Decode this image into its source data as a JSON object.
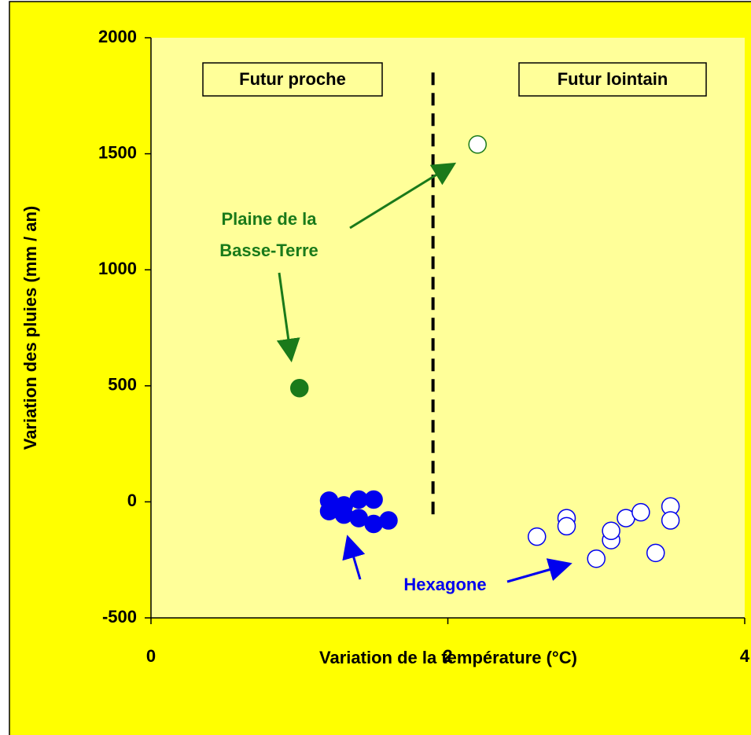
{
  "chart_data": {
    "type": "scatter",
    "xlabel": "Variation de la température (°C)",
    "ylabel": "Variation des pluies (mm / an)",
    "xlim": [
      0,
      4
    ],
    "xticks": [
      0,
      2,
      4
    ],
    "ylim": [
      -500,
      2000
    ],
    "yticks": [
      -500,
      0,
      500,
      1000,
      1500,
      2000
    ],
    "grid": false,
    "series": [
      {
        "color": "#1a7a1a",
        "filled": true,
        "x": [
          1.0
        ],
        "values": [
          490
        ]
      },
      {
        "color": "#1a7a1a",
        "filled": false,
        "x": [
          2.2
        ],
        "values": [
          1540
        ]
      },
      {
        "color": "#0000ee",
        "filled": true,
        "x": [
          1.2,
          1.2,
          1.3,
          1.3,
          1.4,
          1.4,
          1.5,
          1.5,
          1.6
        ],
        "values": [
          5,
          -40,
          -55,
          -15,
          10,
          -70,
          10,
          -95,
          -80
        ]
      },
      {
        "color": "#0000ee",
        "filled": false,
        "x": [
          2.6,
          2.8,
          2.8,
          3.0,
          3.1,
          3.1,
          3.2,
          3.3,
          3.4,
          3.5,
          3.5
        ],
        "values": [
          -150,
          -70,
          -105,
          -245,
          -165,
          -125,
          -70,
          -45,
          -220,
          -20,
          -80
        ]
      }
    ],
    "divider": {
      "x": 1.9,
      "y": [
        1850,
        -70
      ]
    },
    "annotations": [
      "Futur proche",
      "Futur lointain",
      "Plaine de la",
      "Basse-Terre",
      "Hexagone"
    ]
  }
}
